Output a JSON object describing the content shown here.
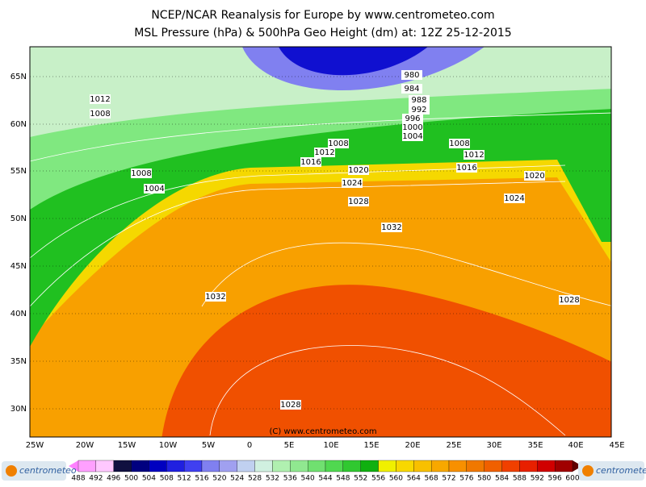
{
  "header": {
    "title": "NCEP/NCAR Reanalysis for Europe by www.centrometeo.com",
    "subtitle": "MSL Pressure (hPa) & 500hPa Geo Height (dm) at: 12Z 25-12-2015"
  },
  "map": {
    "lat_labels": [
      "65N",
      "60N",
      "55N",
      "50N",
      "45N",
      "40N",
      "35N",
      "30N"
    ],
    "lon_labels": [
      "25W",
      "20W",
      "15W",
      "10W",
      "5W",
      "0",
      "5E",
      "10E",
      "15E",
      "20E",
      "25E",
      "30E",
      "35E",
      "40E",
      "45E"
    ],
    "isobar_labels": [
      "980",
      "984",
      "988",
      "992",
      "996",
      "1000",
      "1004",
      "1012",
      "1008",
      "1008",
      "1008",
      "1012",
      "1012",
      "1016",
      "1016",
      "1020",
      "1020",
      "1008",
      "1004",
      "1024",
      "1024",
      "1028",
      "1032",
      "1032",
      "1028",
      "1028"
    ],
    "copyright": "(C) www.centrometeo.com"
  },
  "colorbar": {
    "labels": [
      488,
      492,
      496,
      500,
      504,
      508,
      512,
      516,
      520,
      524,
      528,
      532,
      536,
      540,
      544,
      548,
      552,
      556,
      560,
      564,
      568,
      572,
      576,
      580,
      584,
      588,
      592,
      596,
      600
    ],
    "colors": [
      "#ffa0ff",
      "#ffc8ff",
      "#101040",
      "#000080",
      "#0000c0",
      "#2020e0",
      "#4040f0",
      "#8080f0",
      "#a0a0f0",
      "#c0d0f0",
      "#d0f0e0",
      "#b0f0b0",
      "#90e890",
      "#70e070",
      "#50d850",
      "#30c830",
      "#10b010",
      "#f0f000",
      "#f8d800",
      "#f8c000",
      "#f8a800",
      "#f89000",
      "#f07800",
      "#f06000",
      "#f04000",
      "#e82000",
      "#d00000",
      "#a00000"
    ]
  },
  "logo": {
    "left": "centrometeo",
    "right": "centrometeo"
  }
}
